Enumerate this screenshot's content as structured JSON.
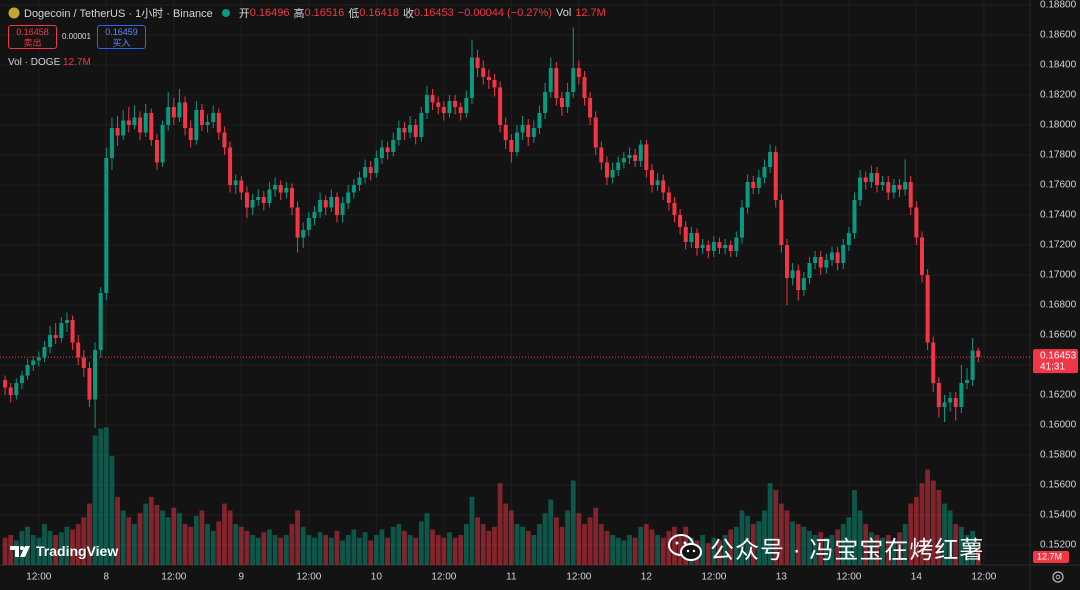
{
  "header": {
    "symbol": "Dogecoin / TetherUS · 1小时 · Binance",
    "ohlc": [
      {
        "label": "开",
        "value": "0.16496"
      },
      {
        "label": "高",
        "value": "0.16516"
      },
      {
        "label": "低",
        "value": "0.16418"
      },
      {
        "label": "收",
        "value": "0.16453"
      }
    ],
    "change": "−0.00044 (−0.27%)",
    "vol_label": "Vol",
    "vol_value": "12.7M"
  },
  "trade": {
    "sell_price": "0.16458",
    "sell_label": "卖出",
    "spread": "0.00001",
    "buy_price": "0.16459",
    "buy_label": "买入"
  },
  "volume_legend": {
    "label": "Vol · DOGE",
    "value": "12.7M"
  },
  "price_tag": {
    "price": "0.16453",
    "countdown": "41:31"
  },
  "volume_tag": "12.7M",
  "logo": "TradingView",
  "watermark": "公众号 · 冯宝宝在烤红薯",
  "chart_data": {
    "type": "candlestick",
    "colors": {
      "up": "#089981",
      "down": "#f23645"
    },
    "grid": true,
    "ylim": [
      0.15067,
      0.18833
    ],
    "yticks": [
      {
        "value": 0.188,
        "label": "0.18800"
      },
      {
        "value": 0.186,
        "label": "0.18600"
      },
      {
        "value": 0.184,
        "label": "0.18400"
      },
      {
        "value": 0.182,
        "label": "0.18200"
      },
      {
        "value": 0.18,
        "label": "0.18000"
      },
      {
        "value": 0.178,
        "label": "0.17800"
      },
      {
        "value": 0.176,
        "label": "0.17600"
      },
      {
        "value": 0.174,
        "label": "0.17400"
      },
      {
        "value": 0.172,
        "label": "0.17200"
      },
      {
        "value": 0.17,
        "label": "0.17000"
      },
      {
        "value": 0.168,
        "label": "0.16800"
      },
      {
        "value": 0.166,
        "label": "0.16600"
      },
      {
        "value": 0.164,
        "label": "0.16400"
      },
      {
        "value": 0.162,
        "label": "0.16200"
      },
      {
        "value": 0.16,
        "label": "0.16000"
      },
      {
        "value": 0.158,
        "label": "0.15800"
      },
      {
        "value": 0.156,
        "label": "0.15600"
      },
      {
        "value": 0.154,
        "label": "0.15400"
      },
      {
        "value": 0.152,
        "label": "0.15200"
      }
    ],
    "xlim": [
      -0.9,
      182.2
    ],
    "xticks": [
      {
        "value": 6,
        "label": "12:00"
      },
      {
        "value": 18,
        "label": "8"
      },
      {
        "value": 30,
        "label": "12:00"
      },
      {
        "value": 42,
        "label": "9"
      },
      {
        "value": 54,
        "label": "12:00"
      },
      {
        "value": 66,
        "label": "10"
      },
      {
        "value": 78,
        "label": "12:00"
      },
      {
        "value": 90,
        "label": "11"
      },
      {
        "value": 102,
        "label": "12:00"
      },
      {
        "value": 114,
        "label": "12"
      },
      {
        "value": 126,
        "label": "12:00"
      },
      {
        "value": 138,
        "label": "13"
      },
      {
        "value": 150,
        "label": "12:00"
      },
      {
        "value": 162,
        "label": "14"
      },
      {
        "value": 174,
        "label": "12:00"
      }
    ],
    "volume_ylim": [
      0,
      110
    ],
    "ohlc": [
      [
        0.163,
        0.1633,
        0.162,
        0.1625
      ],
      [
        0.1625,
        0.1628,
        0.1615,
        0.162
      ],
      [
        0.162,
        0.1631,
        0.1617,
        0.1628
      ],
      [
        0.1628,
        0.1636,
        0.1624,
        0.1633
      ],
      [
        0.1633,
        0.1644,
        0.163,
        0.164
      ],
      [
        0.164,
        0.1646,
        0.1636,
        0.1643
      ],
      [
        0.1643,
        0.1649,
        0.1639,
        0.1645
      ],
      [
        0.1645,
        0.1656,
        0.1642,
        0.1652
      ],
      [
        0.1652,
        0.1666,
        0.1648,
        0.166
      ],
      [
        0.166,
        0.1668,
        0.1654,
        0.1658
      ],
      [
        0.1658,
        0.1672,
        0.1655,
        0.1668
      ],
      [
        0.1668,
        0.1675,
        0.1662,
        0.167
      ],
      [
        0.167,
        0.1673,
        0.165,
        0.1655
      ],
      [
        0.1655,
        0.166,
        0.164,
        0.1645
      ],
      [
        0.1645,
        0.165,
        0.1632,
        0.1638
      ],
      [
        0.1638,
        0.1642,
        0.1612,
        0.1617
      ],
      [
        0.1617,
        0.1655,
        0.1598,
        0.165
      ],
      [
        0.165,
        0.1692,
        0.1645,
        0.1688
      ],
      [
        0.1688,
        0.1785,
        0.1683,
        0.1778
      ],
      [
        0.1778,
        0.1805,
        0.177,
        0.1798
      ],
      [
        0.1798,
        0.1806,
        0.1786,
        0.1793
      ],
      [
        0.1793,
        0.181,
        0.179,
        0.1803
      ],
      [
        0.1803,
        0.1812,
        0.1795,
        0.18
      ],
      [
        0.18,
        0.1813,
        0.1797,
        0.1805
      ],
      [
        0.1805,
        0.1809,
        0.179,
        0.1795
      ],
      [
        0.1795,
        0.1814,
        0.1792,
        0.1808
      ],
      [
        0.1808,
        0.1811,
        0.1786,
        0.179
      ],
      [
        0.179,
        0.1794,
        0.177,
        0.1775
      ],
      [
        0.1775,
        0.1803,
        0.1772,
        0.18
      ],
      [
        0.18,
        0.1822,
        0.1796,
        0.1812
      ],
      [
        0.1812,
        0.1818,
        0.18,
        0.1805
      ],
      [
        0.1805,
        0.1824,
        0.1802,
        0.1815
      ],
      [
        0.1815,
        0.1819,
        0.1793,
        0.1798
      ],
      [
        0.1798,
        0.1803,
        0.1785,
        0.179
      ],
      [
        0.179,
        0.1816,
        0.1787,
        0.181
      ],
      [
        0.181,
        0.1814,
        0.1796,
        0.18
      ],
      [
        0.18,
        0.1807,
        0.1795,
        0.1802
      ],
      [
        0.1802,
        0.1813,
        0.1798,
        0.1808
      ],
      [
        0.1808,
        0.1811,
        0.179,
        0.1795
      ],
      [
        0.1795,
        0.1799,
        0.178,
        0.1785
      ],
      [
        0.1785,
        0.1789,
        0.1755,
        0.176
      ],
      [
        0.176,
        0.1767,
        0.1754,
        0.1763
      ],
      [
        0.1763,
        0.1766,
        0.175,
        0.1755
      ],
      [
        0.1755,
        0.1759,
        0.1738,
        0.1745
      ],
      [
        0.1745,
        0.1754,
        0.174,
        0.175
      ],
      [
        0.175,
        0.1757,
        0.1746,
        0.1752
      ],
      [
        0.1752,
        0.1756,
        0.1743,
        0.1748
      ],
      [
        0.1748,
        0.1762,
        0.1745,
        0.1757
      ],
      [
        0.1757,
        0.1765,
        0.1752,
        0.176
      ],
      [
        0.176,
        0.1763,
        0.175,
        0.1755
      ],
      [
        0.1755,
        0.1762,
        0.1751,
        0.1758
      ],
      [
        0.1758,
        0.1761,
        0.174,
        0.1745
      ],
      [
        0.1745,
        0.1749,
        0.1715,
        0.1725
      ],
      [
        0.1725,
        0.1735,
        0.1718,
        0.173
      ],
      [
        0.173,
        0.1742,
        0.1726,
        0.1738
      ],
      [
        0.1738,
        0.1746,
        0.1733,
        0.1742
      ],
      [
        0.1742,
        0.1755,
        0.1738,
        0.175
      ],
      [
        0.175,
        0.1753,
        0.174,
        0.1745
      ],
      [
        0.1745,
        0.1757,
        0.1742,
        0.1752
      ],
      [
        0.1752,
        0.1755,
        0.1735,
        0.174
      ],
      [
        0.174,
        0.1752,
        0.1735,
        0.1748
      ],
      [
        0.1748,
        0.176,
        0.1744,
        0.1755
      ],
      [
        0.1755,
        0.1764,
        0.1751,
        0.176
      ],
      [
        0.176,
        0.1769,
        0.1756,
        0.1765
      ],
      [
        0.1765,
        0.1777,
        0.1761,
        0.1772
      ],
      [
        0.1772,
        0.1776,
        0.1763,
        0.1768
      ],
      [
        0.1768,
        0.1783,
        0.1765,
        0.1778
      ],
      [
        0.1778,
        0.179,
        0.1774,
        0.1785
      ],
      [
        0.1785,
        0.1789,
        0.1777,
        0.1782
      ],
      [
        0.1782,
        0.1795,
        0.1779,
        0.179
      ],
      [
        0.179,
        0.1803,
        0.1786,
        0.1798
      ],
      [
        0.1798,
        0.1802,
        0.179,
        0.1795
      ],
      [
        0.1795,
        0.1806,
        0.1791,
        0.18
      ],
      [
        0.18,
        0.1804,
        0.1787,
        0.1792
      ],
      [
        0.1792,
        0.1812,
        0.1789,
        0.1808
      ],
      [
        0.1808,
        0.1826,
        0.1804,
        0.182
      ],
      [
        0.182,
        0.1824,
        0.181,
        0.1815
      ],
      [
        0.1815,
        0.1819,
        0.1807,
        0.1812
      ],
      [
        0.1812,
        0.1816,
        0.1803,
        0.1808
      ],
      [
        0.1808,
        0.182,
        0.1805,
        0.1816
      ],
      [
        0.1816,
        0.182,
        0.1807,
        0.1812
      ],
      [
        0.1812,
        0.1815,
        0.1803,
        0.1808
      ],
      [
        0.1808,
        0.1823,
        0.1805,
        0.1818
      ],
      [
        0.1818,
        0.1857,
        0.1814,
        0.1845
      ],
      [
        0.1845,
        0.185,
        0.1832,
        0.1838
      ],
      [
        0.1838,
        0.1843,
        0.1827,
        0.1832
      ],
      [
        0.1832,
        0.1837,
        0.1824,
        0.183
      ],
      [
        0.183,
        0.1834,
        0.1819,
        0.1825
      ],
      [
        0.1825,
        0.1829,
        0.1795,
        0.18
      ],
      [
        0.18,
        0.1805,
        0.1784,
        0.179
      ],
      [
        0.179,
        0.1794,
        0.1775,
        0.1782
      ],
      [
        0.1782,
        0.18,
        0.1779,
        0.1795
      ],
      [
        0.1795,
        0.1806,
        0.179,
        0.18
      ],
      [
        0.18,
        0.1804,
        0.1786,
        0.1792
      ],
      [
        0.1792,
        0.1803,
        0.1788,
        0.1798
      ],
      [
        0.1798,
        0.1813,
        0.1794,
        0.1808
      ],
      [
        0.1808,
        0.1828,
        0.1804,
        0.1822
      ],
      [
        0.1822,
        0.1845,
        0.1818,
        0.1838
      ],
      [
        0.1838,
        0.1842,
        0.1813,
        0.1818
      ],
      [
        0.1818,
        0.1822,
        0.1806,
        0.1812
      ],
      [
        0.1812,
        0.1828,
        0.1808,
        0.1822
      ],
      [
        0.1822,
        0.1865,
        0.1818,
        0.1838
      ],
      [
        0.1838,
        0.1843,
        0.1827,
        0.1832
      ],
      [
        0.1832,
        0.1836,
        0.1813,
        0.1818
      ],
      [
        0.1818,
        0.1822,
        0.18,
        0.1805
      ],
      [
        0.1805,
        0.1809,
        0.178,
        0.1785
      ],
      [
        0.1785,
        0.1789,
        0.177,
        0.1775
      ],
      [
        0.1775,
        0.1779,
        0.176,
        0.1765
      ],
      [
        0.1765,
        0.1775,
        0.1761,
        0.177
      ],
      [
        0.177,
        0.1779,
        0.1766,
        0.1775
      ],
      [
        0.1775,
        0.1782,
        0.1771,
        0.1778
      ],
      [
        0.1778,
        0.1785,
        0.1774,
        0.178
      ],
      [
        0.178,
        0.1784,
        0.1772,
        0.1776
      ],
      [
        0.1776,
        0.179,
        0.1772,
        0.1787
      ],
      [
        0.1787,
        0.179,
        0.1765,
        0.177
      ],
      [
        0.177,
        0.1774,
        0.1755,
        0.176
      ],
      [
        0.176,
        0.1768,
        0.1756,
        0.1763
      ],
      [
        0.1763,
        0.1767,
        0.175,
        0.1755
      ],
      [
        0.1755,
        0.1759,
        0.1743,
        0.1748
      ],
      [
        0.1748,
        0.1752,
        0.1735,
        0.174
      ],
      [
        0.174,
        0.1744,
        0.1727,
        0.1732
      ],
      [
        0.1732,
        0.1736,
        0.1717,
        0.1722
      ],
      [
        0.1722,
        0.1732,
        0.1718,
        0.1728
      ],
      [
        0.1728,
        0.1731,
        0.1713,
        0.1718
      ],
      [
        0.1718,
        0.1724,
        0.1714,
        0.172
      ],
      [
        0.172,
        0.1723,
        0.1711,
        0.1716
      ],
      [
        0.1716,
        0.1726,
        0.1712,
        0.1722
      ],
      [
        0.1722,
        0.1725,
        0.1714,
        0.1718
      ],
      [
        0.1718,
        0.1724,
        0.1714,
        0.172
      ],
      [
        0.172,
        0.1723,
        0.1712,
        0.1716
      ],
      [
        0.1716,
        0.1729,
        0.1712,
        0.1725
      ],
      [
        0.1725,
        0.175,
        0.1721,
        0.1745
      ],
      [
        0.1745,
        0.1767,
        0.1741,
        0.1762
      ],
      [
        0.1762,
        0.1766,
        0.1754,
        0.1758
      ],
      [
        0.1758,
        0.177,
        0.1754,
        0.1765
      ],
      [
        0.1765,
        0.1777,
        0.1761,
        0.1772
      ],
      [
        0.1772,
        0.1787,
        0.1768,
        0.1782
      ],
      [
        0.1782,
        0.1786,
        0.1745,
        0.175
      ],
      [
        0.175,
        0.1754,
        0.1715,
        0.172
      ],
      [
        0.172,
        0.1724,
        0.168,
        0.1698
      ],
      [
        0.1698,
        0.1708,
        0.1693,
        0.1703
      ],
      [
        0.1703,
        0.1707,
        0.1683,
        0.169
      ],
      [
        0.169,
        0.1702,
        0.1686,
        0.1698
      ],
      [
        0.1698,
        0.1712,
        0.1694,
        0.1708
      ],
      [
        0.1708,
        0.1716,
        0.1704,
        0.1712
      ],
      [
        0.1712,
        0.1716,
        0.17,
        0.1705
      ],
      [
        0.1705,
        0.1714,
        0.1701,
        0.171
      ],
      [
        0.171,
        0.1719,
        0.1706,
        0.1715
      ],
      [
        0.1715,
        0.1719,
        0.1703,
        0.1708
      ],
      [
        0.1708,
        0.1724,
        0.1704,
        0.172
      ],
      [
        0.172,
        0.1732,
        0.1716,
        0.1728
      ],
      [
        0.1728,
        0.1755,
        0.1724,
        0.175
      ],
      [
        0.175,
        0.177,
        0.1746,
        0.1765
      ],
      [
        0.1765,
        0.1769,
        0.1757,
        0.1762
      ],
      [
        0.1762,
        0.1773,
        0.1758,
        0.1768
      ],
      [
        0.1768,
        0.1772,
        0.1755,
        0.176
      ],
      [
        0.176,
        0.1766,
        0.1756,
        0.1762
      ],
      [
        0.1762,
        0.1766,
        0.175,
        0.1755
      ],
      [
        0.1755,
        0.1764,
        0.1751,
        0.176
      ],
      [
        0.176,
        0.1764,
        0.1752,
        0.1757
      ],
      [
        0.1757,
        0.1777,
        0.1753,
        0.1762
      ],
      [
        0.1762,
        0.1766,
        0.174,
        0.1745
      ],
      [
        0.1745,
        0.1749,
        0.172,
        0.1725
      ],
      [
        0.1725,
        0.1729,
        0.1695,
        0.17
      ],
      [
        0.17,
        0.1704,
        0.165,
        0.1655
      ],
      [
        0.1655,
        0.1659,
        0.1622,
        0.1628
      ],
      [
        0.1628,
        0.1632,
        0.1605,
        0.1612
      ],
      [
        0.1612,
        0.162,
        0.1602,
        0.1615
      ],
      [
        0.1615,
        0.1622,
        0.1609,
        0.1618
      ],
      [
        0.1618,
        0.1622,
        0.1603,
        0.1612
      ],
      [
        0.1612,
        0.164,
        0.1608,
        0.1628
      ],
      [
        0.1628,
        0.1638,
        0.1624,
        0.163
      ],
      [
        0.163,
        0.1658,
        0.1626,
        0.16496
      ],
      [
        0.16496,
        0.16516,
        0.16418,
        0.16453
      ]
    ],
    "volume": [
      20,
      22,
      18,
      25,
      28,
      22,
      20,
      30,
      25,
      22,
      24,
      28,
      26,
      30,
      35,
      45,
      95,
      100,
      101,
      80,
      50,
      40,
      35,
      30,
      38,
      45,
      50,
      44,
      40,
      35,
      42,
      38,
      30,
      28,
      36,
      40,
      30,
      25,
      32,
      45,
      40,
      30,
      28,
      25,
      22,
      20,
      24,
      26,
      22,
      20,
      22,
      30,
      40,
      28,
      22,
      20,
      24,
      22,
      20,
      25,
      18,
      22,
      26,
      20,
      24,
      18,
      22,
      26,
      20,
      28,
      30,
      25,
      22,
      20,
      32,
      38,
      26,
      22,
      20,
      24,
      20,
      22,
      30,
      50,
      35,
      30,
      25,
      28,
      60,
      45,
      40,
      30,
      28,
      25,
      22,
      30,
      38,
      48,
      35,
      28,
      40,
      62,
      38,
      30,
      35,
      42,
      30,
      25,
      22,
      20,
      18,
      22,
      20,
      28,
      30,
      26,
      22,
      20,
      25,
      28,
      22,
      28,
      20,
      18,
      22,
      16,
      20,
      18,
      22,
      26,
      28,
      40,
      36,
      30,
      32,
      40,
      60,
      55,
      45,
      40,
      32,
      30,
      28,
      25,
      22,
      24,
      20,
      22,
      26,
      30,
      35,
      55,
      40,
      30,
      24,
      22,
      20,
      22,
      18,
      24,
      30,
      45,
      50,
      60,
      70,
      62,
      55,
      45,
      40,
      30,
      28,
      22,
      25,
      12.7
    ]
  }
}
